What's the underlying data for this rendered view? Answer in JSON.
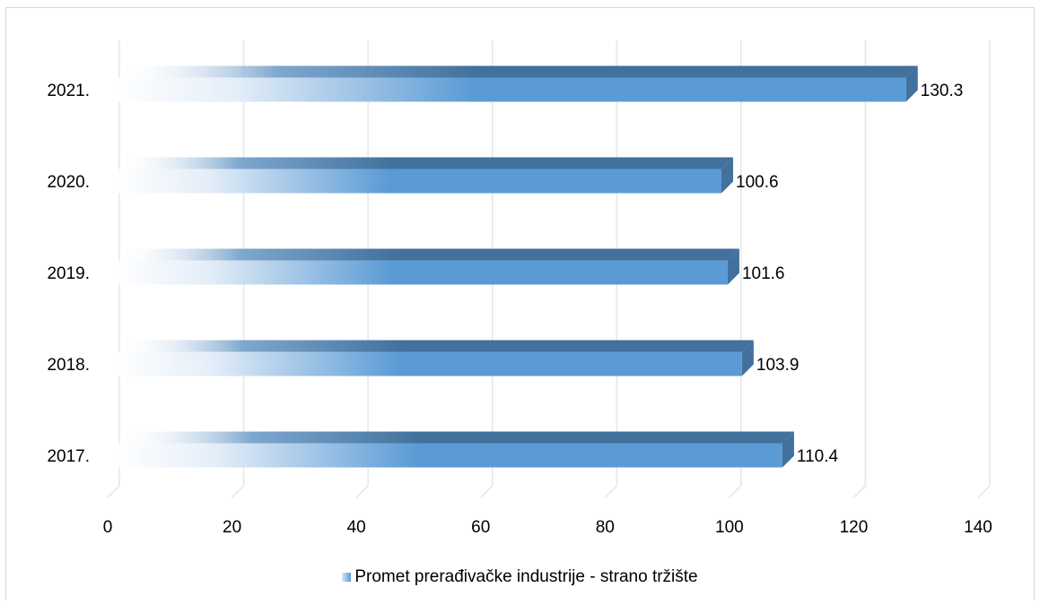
{
  "chart_data": {
    "type": "bar",
    "orientation": "horizontal",
    "categories": [
      "2017.",
      "2018.",
      "2019.",
      "2020.",
      "2021."
    ],
    "series": [
      {
        "name": "Promet prerađivačke industrije - strano tržište",
        "values": [
          110.4,
          103.9,
          101.6,
          100.6,
          130.3
        ]
      }
    ],
    "data_labels": [
      "110.4",
      "103.9",
      "101.6",
      "100.6",
      "130.3"
    ],
    "xlim": [
      0,
      140
    ],
    "x_ticks": [
      "0",
      "20",
      "40",
      "60",
      "80",
      "100",
      "120",
      "140"
    ],
    "grid": true,
    "legend_position": "bottom",
    "colors": {
      "bar": "#5b9bd5",
      "bar_top": "#41719c",
      "bar_fade": "#ffffff",
      "grid": "#e6e6e6"
    }
  },
  "legend": {
    "label": "Promet prerađivačke industrije - strano tržište"
  }
}
